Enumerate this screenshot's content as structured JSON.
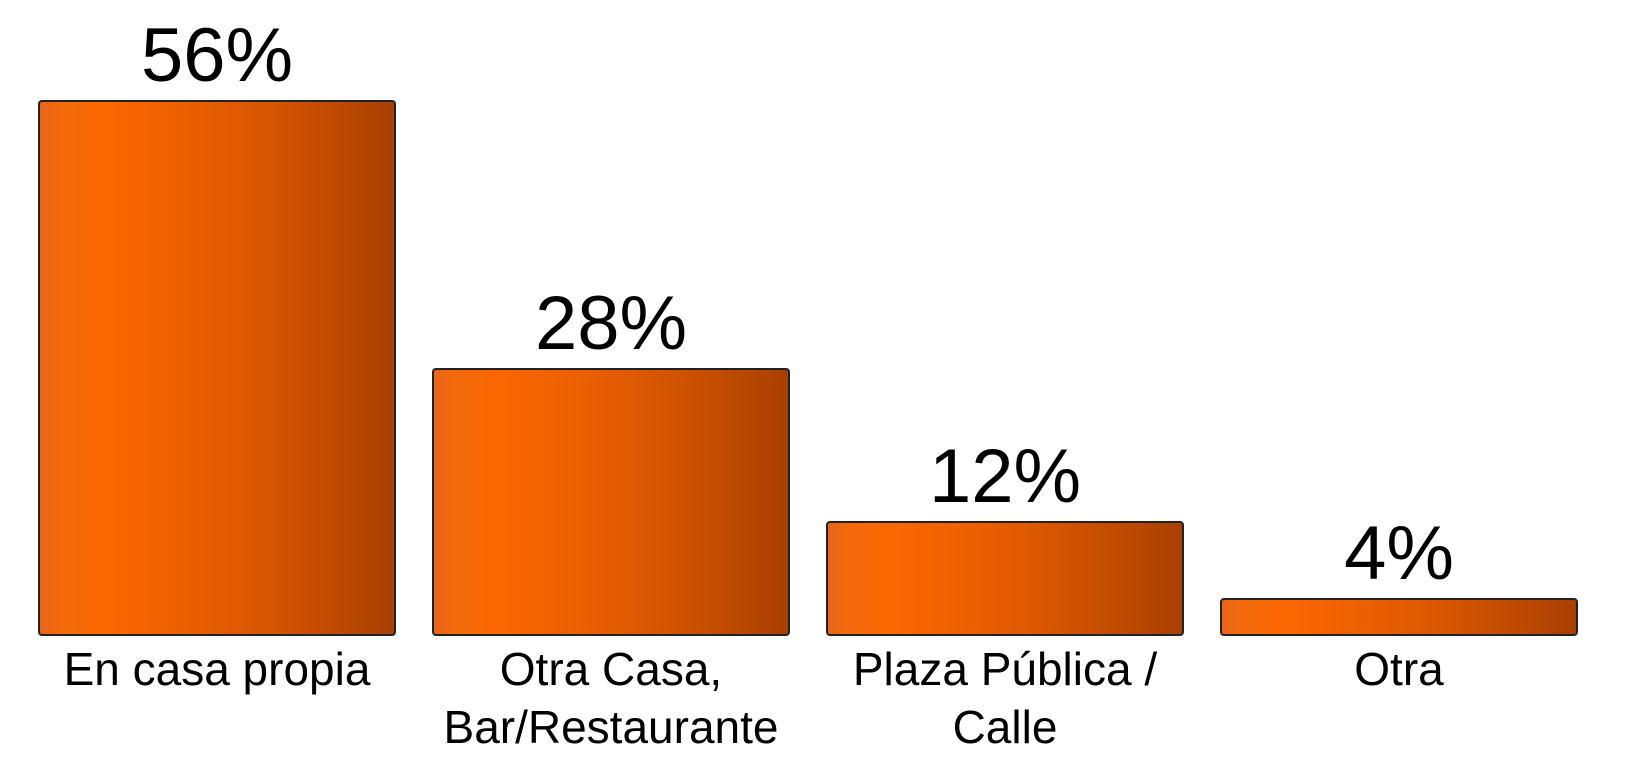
{
  "chart_data": {
    "type": "bar",
    "categories": [
      "En casa propia",
      "Otra Casa, Bar/Restaurante",
      "Plaza Pública / Calle",
      "Otra"
    ],
    "values": [
      56,
      28,
      12,
      4
    ],
    "value_labels": [
      "56%",
      "28%",
      "12%",
      "4%"
    ],
    "color": "#ff6600",
    "ylim": [
      0,
      56
    ]
  }
}
